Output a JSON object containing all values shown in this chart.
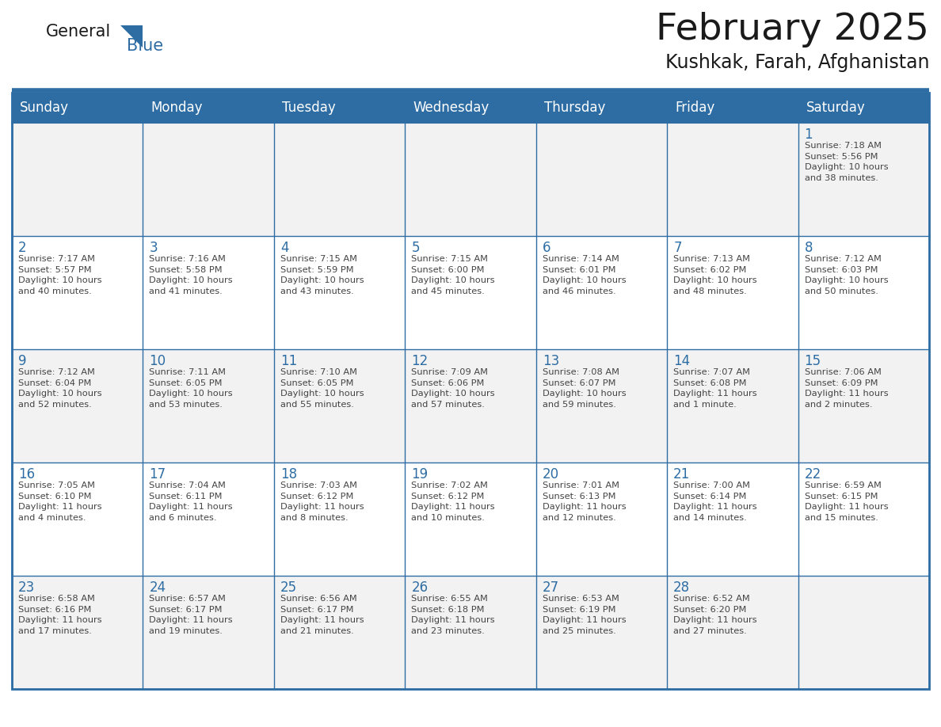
{
  "title": "February 2025",
  "subtitle": "Kushkak, Farah, Afghanistan",
  "header_bg": "#2E6DA4",
  "header_text_color": "#FFFFFF",
  "cell_bg_odd": "#F2F2F2",
  "cell_bg_even": "#FFFFFF",
  "day_number_color": "#2E6DA4",
  "info_text_color": "#444444",
  "border_color": "#2E6DA4",
  "separator_color": "#2E6DA4",
  "days_of_week": [
    "Sunday",
    "Monday",
    "Tuesday",
    "Wednesday",
    "Thursday",
    "Friday",
    "Saturday"
  ],
  "weeks": [
    [
      {
        "day": null,
        "info": ""
      },
      {
        "day": null,
        "info": ""
      },
      {
        "day": null,
        "info": ""
      },
      {
        "day": null,
        "info": ""
      },
      {
        "day": null,
        "info": ""
      },
      {
        "day": null,
        "info": ""
      },
      {
        "day": 1,
        "info": "Sunrise: 7:18 AM\nSunset: 5:56 PM\nDaylight: 10 hours\nand 38 minutes."
      }
    ],
    [
      {
        "day": 2,
        "info": "Sunrise: 7:17 AM\nSunset: 5:57 PM\nDaylight: 10 hours\nand 40 minutes."
      },
      {
        "day": 3,
        "info": "Sunrise: 7:16 AM\nSunset: 5:58 PM\nDaylight: 10 hours\nand 41 minutes."
      },
      {
        "day": 4,
        "info": "Sunrise: 7:15 AM\nSunset: 5:59 PM\nDaylight: 10 hours\nand 43 minutes."
      },
      {
        "day": 5,
        "info": "Sunrise: 7:15 AM\nSunset: 6:00 PM\nDaylight: 10 hours\nand 45 minutes."
      },
      {
        "day": 6,
        "info": "Sunrise: 7:14 AM\nSunset: 6:01 PM\nDaylight: 10 hours\nand 46 minutes."
      },
      {
        "day": 7,
        "info": "Sunrise: 7:13 AM\nSunset: 6:02 PM\nDaylight: 10 hours\nand 48 minutes."
      },
      {
        "day": 8,
        "info": "Sunrise: 7:12 AM\nSunset: 6:03 PM\nDaylight: 10 hours\nand 50 minutes."
      }
    ],
    [
      {
        "day": 9,
        "info": "Sunrise: 7:12 AM\nSunset: 6:04 PM\nDaylight: 10 hours\nand 52 minutes."
      },
      {
        "day": 10,
        "info": "Sunrise: 7:11 AM\nSunset: 6:05 PM\nDaylight: 10 hours\nand 53 minutes."
      },
      {
        "day": 11,
        "info": "Sunrise: 7:10 AM\nSunset: 6:05 PM\nDaylight: 10 hours\nand 55 minutes."
      },
      {
        "day": 12,
        "info": "Sunrise: 7:09 AM\nSunset: 6:06 PM\nDaylight: 10 hours\nand 57 minutes."
      },
      {
        "day": 13,
        "info": "Sunrise: 7:08 AM\nSunset: 6:07 PM\nDaylight: 10 hours\nand 59 minutes."
      },
      {
        "day": 14,
        "info": "Sunrise: 7:07 AM\nSunset: 6:08 PM\nDaylight: 11 hours\nand 1 minute."
      },
      {
        "day": 15,
        "info": "Sunrise: 7:06 AM\nSunset: 6:09 PM\nDaylight: 11 hours\nand 2 minutes."
      }
    ],
    [
      {
        "day": 16,
        "info": "Sunrise: 7:05 AM\nSunset: 6:10 PM\nDaylight: 11 hours\nand 4 minutes."
      },
      {
        "day": 17,
        "info": "Sunrise: 7:04 AM\nSunset: 6:11 PM\nDaylight: 11 hours\nand 6 minutes."
      },
      {
        "day": 18,
        "info": "Sunrise: 7:03 AM\nSunset: 6:12 PM\nDaylight: 11 hours\nand 8 minutes."
      },
      {
        "day": 19,
        "info": "Sunrise: 7:02 AM\nSunset: 6:12 PM\nDaylight: 11 hours\nand 10 minutes."
      },
      {
        "day": 20,
        "info": "Sunrise: 7:01 AM\nSunset: 6:13 PM\nDaylight: 11 hours\nand 12 minutes."
      },
      {
        "day": 21,
        "info": "Sunrise: 7:00 AM\nSunset: 6:14 PM\nDaylight: 11 hours\nand 14 minutes."
      },
      {
        "day": 22,
        "info": "Sunrise: 6:59 AM\nSunset: 6:15 PM\nDaylight: 11 hours\nand 15 minutes."
      }
    ],
    [
      {
        "day": 23,
        "info": "Sunrise: 6:58 AM\nSunset: 6:16 PM\nDaylight: 11 hours\nand 17 minutes."
      },
      {
        "day": 24,
        "info": "Sunrise: 6:57 AM\nSunset: 6:17 PM\nDaylight: 11 hours\nand 19 minutes."
      },
      {
        "day": 25,
        "info": "Sunrise: 6:56 AM\nSunset: 6:17 PM\nDaylight: 11 hours\nand 21 minutes."
      },
      {
        "day": 26,
        "info": "Sunrise: 6:55 AM\nSunset: 6:18 PM\nDaylight: 11 hours\nand 23 minutes."
      },
      {
        "day": 27,
        "info": "Sunrise: 6:53 AM\nSunset: 6:19 PM\nDaylight: 11 hours\nand 25 minutes."
      },
      {
        "day": 28,
        "info": "Sunrise: 6:52 AM\nSunset: 6:20 PM\nDaylight: 11 hours\nand 27 minutes."
      },
      {
        "day": null,
        "info": ""
      }
    ]
  ],
  "logo_general_color": "#1a1a1a",
  "logo_blue_color": "#2E6DA4",
  "title_fontsize": 34,
  "subtitle_fontsize": 17,
  "header_fontsize": 12,
  "day_number_fontsize": 12,
  "info_fontsize": 8.2,
  "logo_fontsize": 15
}
